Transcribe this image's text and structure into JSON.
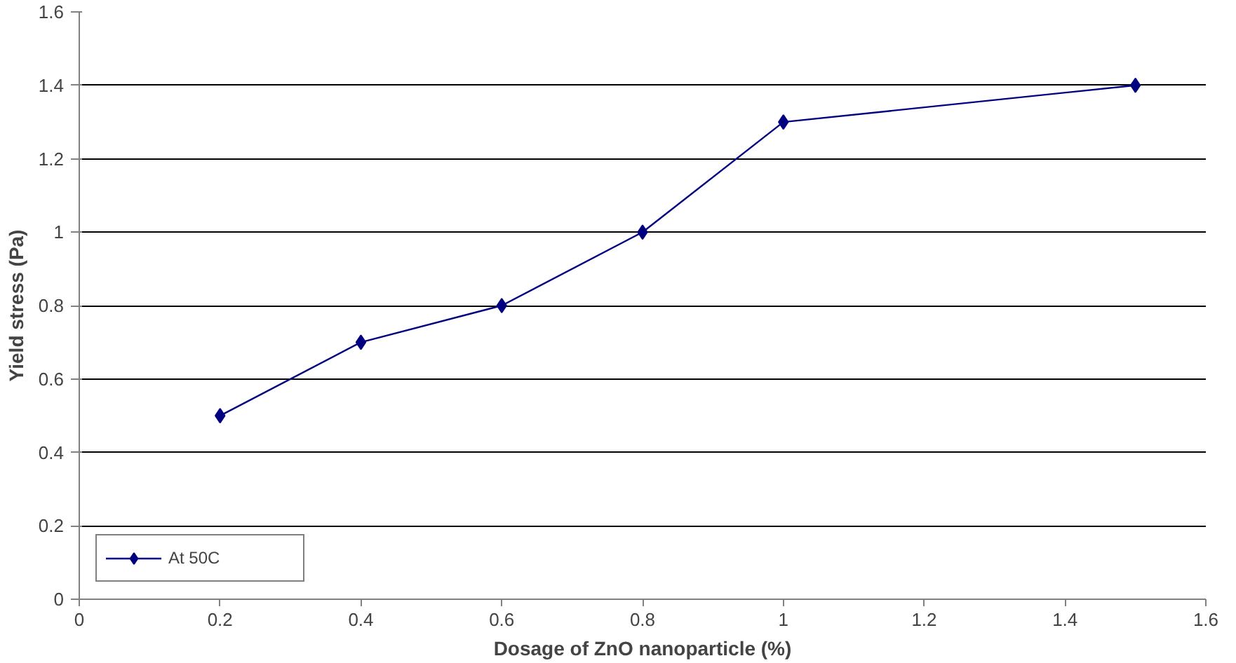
{
  "chart_data": {
    "type": "line",
    "xlabel": "Dosage of ZnO nanoparticle (%)",
    "ylabel": "Yield stress (Pa)",
    "x": [
      0.2,
      0.4,
      0.6,
      0.8,
      1,
      1.5
    ],
    "series": [
      {
        "name": "At 50C",
        "color": "#000080",
        "values": [
          0.5,
          0.7,
          0.8,
          1.0,
          1.3,
          1.4
        ]
      }
    ],
    "xlim": [
      0,
      1.6
    ],
    "ylim": [
      0,
      1.6
    ],
    "xticks": [
      0,
      0.2,
      0.4,
      0.6,
      0.8,
      1,
      1.2,
      1.4,
      1.6
    ],
    "yticks": [
      0,
      0.2,
      0.4,
      0.6,
      0.8,
      1,
      1.2,
      1.4,
      1.6
    ],
    "grid": "y",
    "legend": "bottom left",
    "marker": "diamond",
    "line_style": "solid"
  }
}
